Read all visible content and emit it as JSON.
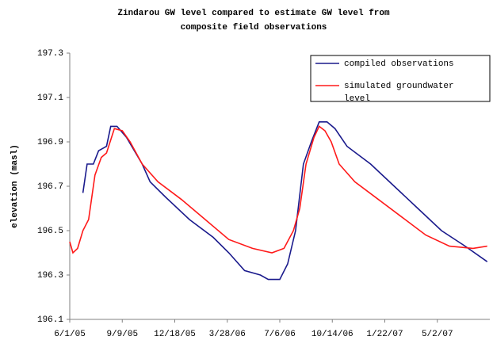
{
  "chart_data": {
    "type": "line",
    "title": "Zindarou GW level compared to estimate GW level from composite field observations",
    "y_label": "elevation (masl)",
    "xlim": [
      "6/1/05",
      "8/10/07"
    ],
    "xticks": [
      "6/1/05",
      "9/9/05",
      "12/18/05",
      "3/28/06",
      "7/6/06",
      "10/14/06",
      "1/22/07",
      "5/2/07"
    ],
    "ylim": [
      196.1,
      197.3
    ],
    "yticks": [
      196.1,
      196.3,
      196.5,
      196.7,
      196.9,
      197.1,
      197.3
    ],
    "grid": false,
    "legend": "top-right",
    "series": [
      {
        "name": "compiled observations",
        "color": "#1a1a8c",
        "x": [
          "6/26/05",
          "7/4/05",
          "7/16/05",
          "7/26/05",
          "8/10/05",
          "8/18/05",
          "8/30/05",
          "9/17/05",
          "10/17/05",
          "11/1/05",
          "12/1/05",
          "1/15/06",
          "3/1/06",
          "3/31/06",
          "4/30/06",
          "5/30/06",
          "6/14/06",
          "7/6/06",
          "7/21/06",
          "8/5/06",
          "8/20/06",
          "9/4/06",
          "9/19/06",
          "10/4/06",
          "10/19/06",
          "11/11/06",
          "12/26/06",
          "2/9/07",
          "3/26/07",
          "5/10/07",
          "6/24/07",
          "8/5/07"
        ],
        "values": [
          196.67,
          196.8,
          196.8,
          196.86,
          196.88,
          196.97,
          196.97,
          196.92,
          196.8,
          196.72,
          196.65,
          196.55,
          196.47,
          196.4,
          196.32,
          196.3,
          196.28,
          196.28,
          196.35,
          196.5,
          196.8,
          196.9,
          196.99,
          196.99,
          196.96,
          196.88,
          196.8,
          196.7,
          196.6,
          196.5,
          196.43,
          196.36
        ]
      },
      {
        "name": "simulated groundwater level",
        "color": "#ff1a1a",
        "x": [
          "6/1/05",
          "6/7/05",
          "6/16/05",
          "6/26/05",
          "7/7/05",
          "7/19/05",
          "7/31/05",
          "8/10/05",
          "8/25/05",
          "9/9/05",
          "9/24/05",
          "10/17/05",
          "11/16/05",
          "12/31/05",
          "2/14/06",
          "3/31/06",
          "5/15/06",
          "6/21/06",
          "7/14/06",
          "8/1/06",
          "8/13/06",
          "8/25/06",
          "9/9/06",
          "9/19/06",
          "9/30/06",
          "10/12/06",
          "10/27/06",
          "11/26/06",
          "1/10/07",
          "2/24/07",
          "4/10/07",
          "5/25/07",
          "7/9/07",
          "8/5/07"
        ],
        "values": [
          196.45,
          196.4,
          196.42,
          196.5,
          196.55,
          196.75,
          196.83,
          196.85,
          196.96,
          196.95,
          196.9,
          196.8,
          196.72,
          196.64,
          196.55,
          196.46,
          196.42,
          196.4,
          196.42,
          196.5,
          196.6,
          196.8,
          196.92,
          196.97,
          196.95,
          196.9,
          196.8,
          196.72,
          196.64,
          196.56,
          196.48,
          196.43,
          196.42,
          196.43
        ]
      }
    ]
  }
}
